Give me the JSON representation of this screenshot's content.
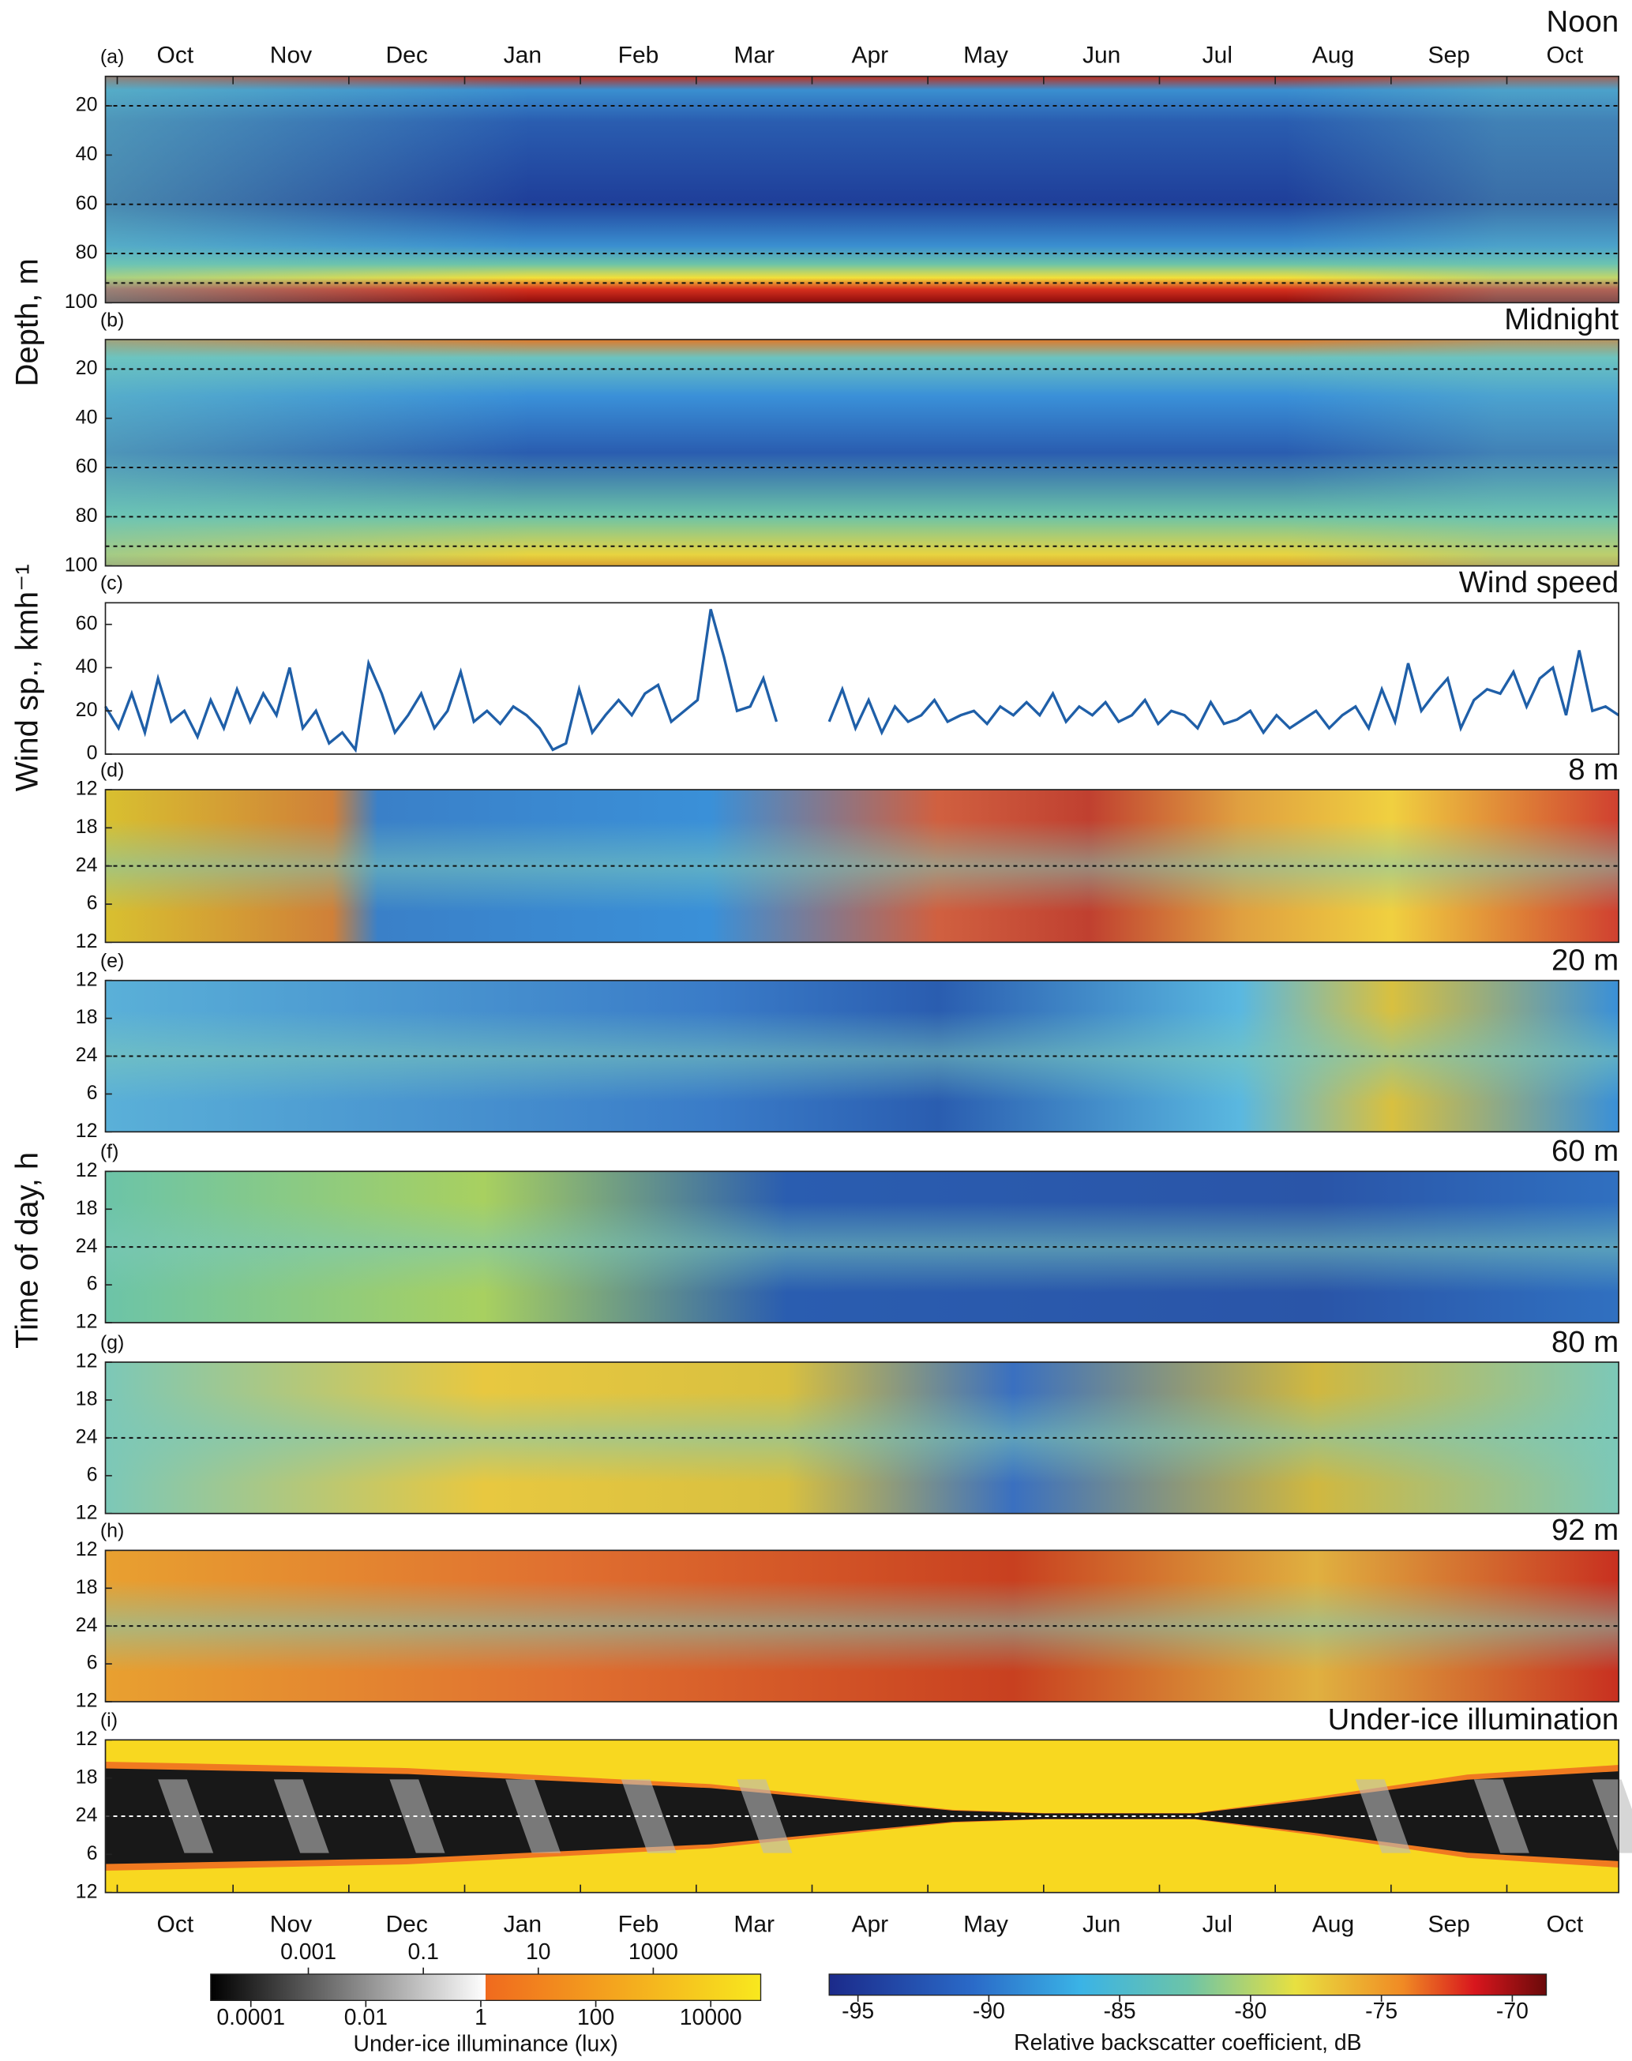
{
  "chart_data": [
    {
      "type": "heatmap",
      "panel_label": "(a)",
      "title": "Noon",
      "ylabel": "Depth, m",
      "categories": [
        "Oct",
        "Nov",
        "Dec",
        "Jan",
        "Feb",
        "Mar",
        "Apr",
        "May",
        "Jun",
        "Jul",
        "Aug",
        "Sep",
        "Oct"
      ],
      "ylim": [
        8,
        100
      ],
      "y_reversed": true,
      "yticks": [
        20,
        40,
        60,
        80,
        100
      ],
      "reference_lines": [
        20,
        60,
        80,
        92
      ]
    },
    {
      "type": "heatmap",
      "panel_label": "(b)",
      "title": "Midnight",
      "ylim": [
        8,
        100
      ],
      "y_reversed": true,
      "yticks": [
        20,
        40,
        60,
        80,
        100
      ],
      "reference_lines": [
        20,
        60,
        80,
        92
      ]
    },
    {
      "type": "line",
      "panel_label": "(c)",
      "title": "Wind speed",
      "ylabel": "Wind sp., kmh⁻¹",
      "color": "#1f5fa8",
      "ylim": [
        0,
        70
      ],
      "yticks": [
        0,
        20,
        40,
        60
      ],
      "values": [
        22,
        12,
        28,
        10,
        35,
        15,
        20,
        8,
        25,
        12,
        30,
        15,
        28,
        18,
        40,
        12,
        20,
        5,
        10,
        2,
        42,
        28,
        10,
        18,
        28,
        12,
        20,
        38,
        15,
        20,
        14,
        22,
        18,
        12,
        2,
        5,
        30,
        10,
        18,
        25,
        18,
        28,
        32,
        15,
        20,
        25,
        67,
        45,
        20,
        22,
        35,
        15,
        null,
        null,
        null,
        15,
        30,
        12,
        25,
        10,
        22,
        15,
        18,
        25,
        15,
        18,
        20,
        14,
        22,
        18,
        24,
        18,
        28,
        15,
        22,
        18,
        24,
        15,
        18,
        25,
        14,
        20,
        18,
        12,
        24,
        14,
        16,
        20,
        10,
        18,
        12,
        16,
        20,
        12,
        18,
        22,
        12,
        30,
        15,
        42,
        20,
        28,
        35,
        12,
        25,
        30,
        28,
        38,
        22,
        35,
        40,
        18,
        48,
        20,
        22,
        18
      ]
    },
    {
      "type": "heatmap",
      "panel_label": "(d)",
      "title": "8 m",
      "ylabel": "Time of day, h",
      "ylim": [
        12,
        36
      ],
      "y_reversed": true,
      "yticks": [
        12,
        18,
        24,
        {
          "value": 30,
          "label": "6"
        },
        {
          "value": 36,
          "label": "12"
        }
      ],
      "reference_lines": [
        24
      ]
    },
    {
      "type": "heatmap",
      "panel_label": "(e)",
      "title": "20 m",
      "ylim": [
        12,
        36
      ],
      "y_reversed": true,
      "yticks": [
        12,
        18,
        24,
        {
          "value": 30,
          "label": "6"
        },
        {
          "value": 36,
          "label": "12"
        }
      ],
      "reference_lines": [
        24
      ]
    },
    {
      "type": "heatmap",
      "panel_label": "(f)",
      "title": "60 m",
      "ylim": [
        12,
        36
      ],
      "y_reversed": true,
      "yticks": [
        12,
        18,
        24,
        {
          "value": 30,
          "label": "6"
        },
        {
          "value": 36,
          "label": "12"
        }
      ],
      "reference_lines": [
        24
      ]
    },
    {
      "type": "heatmap",
      "panel_label": "(g)",
      "title": "80 m",
      "ylim": [
        12,
        36
      ],
      "y_reversed": true,
      "yticks": [
        12,
        18,
        24,
        {
          "value": 30,
          "label": "6"
        },
        {
          "value": 36,
          "label": "12"
        }
      ],
      "reference_lines": [
        24
      ]
    },
    {
      "type": "heatmap",
      "panel_label": "(h)",
      "title": "92 m",
      "ylim": [
        12,
        36
      ],
      "y_reversed": true,
      "yticks": [
        12,
        18,
        24,
        {
          "value": 30,
          "label": "6"
        },
        {
          "value": 36,
          "label": "12"
        }
      ],
      "reference_lines": [
        24
      ]
    },
    {
      "type": "illumination",
      "panel_label": "(i)",
      "title": "Under-ice illumination",
      "categories": [
        "Oct",
        "Nov",
        "Dec",
        "Jan",
        "Feb",
        "Mar",
        "Apr",
        "May",
        "Jun",
        "Jul",
        "Aug",
        "Sep",
        "Oct"
      ],
      "ylim": [
        12,
        36
      ],
      "y_reversed": true,
      "yticks": [
        12,
        18,
        24,
        {
          "value": 30,
          "label": "6"
        },
        {
          "value": 36,
          "label": "12"
        }
      ],
      "reference_lines": [
        24
      ]
    }
  ],
  "colorbars": [
    {
      "label": "Under-ice illuminance (lux)",
      "log": true,
      "lim": [
        2e-05,
        74000
      ],
      "ticks": [
        0.0001,
        0.001,
        0.01,
        0.1,
        1,
        10,
        100,
        1000,
        10000
      ]
    },
    {
      "label": "Relative backscatter coefficient, dB",
      "log": false,
      "lim": [
        -96.1,
        -68.7
      ],
      "ticks": [
        -95,
        -90,
        -85,
        -80,
        -75,
        -70
      ]
    }
  ]
}
